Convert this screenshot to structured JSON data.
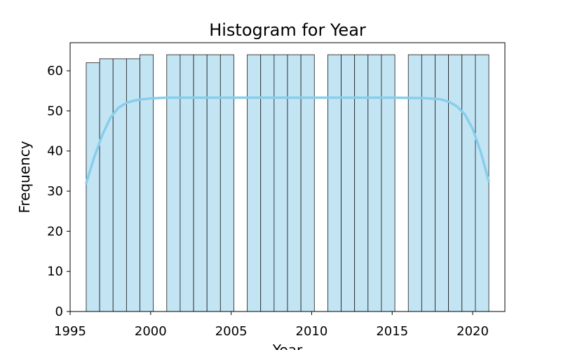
{
  "chart_data": {
    "type": "bar",
    "title": "Histogram for Year",
    "xlabel": "Year",
    "ylabel": "Frequency",
    "xlim": [
      1995,
      2022
    ],
    "ylim": [
      0,
      67
    ],
    "xticks": [
      1995,
      2000,
      2005,
      2010,
      2015,
      2020
    ],
    "yticks": [
      0,
      10,
      20,
      30,
      40,
      50,
      60
    ],
    "grid": false,
    "colors": {
      "bar_fill": "#c3e4f3",
      "bar_edge": "#1a1a1a",
      "kde": "#87ceeb"
    },
    "bins": [
      {
        "start": 1996.0,
        "end": 1996.833,
        "count": 62
      },
      {
        "start": 1996.833,
        "end": 1997.667,
        "count": 63
      },
      {
        "start": 1997.667,
        "end": 1998.5,
        "count": 63
      },
      {
        "start": 1998.5,
        "end": 1999.333,
        "count": 63
      },
      {
        "start": 1999.333,
        "end": 2000.167,
        "count": 64
      },
      {
        "start": 2000.167,
        "end": 2001.0,
        "count": 0
      },
      {
        "start": 2001.0,
        "end": 2001.833,
        "count": 64
      },
      {
        "start": 2001.833,
        "end": 2002.667,
        "count": 64
      },
      {
        "start": 2002.667,
        "end": 2003.5,
        "count": 64
      },
      {
        "start": 2003.5,
        "end": 2004.333,
        "count": 64
      },
      {
        "start": 2004.333,
        "end": 2005.167,
        "count": 64
      },
      {
        "start": 2005.167,
        "end": 2006.0,
        "count": 0
      },
      {
        "start": 2006.0,
        "end": 2006.833,
        "count": 64
      },
      {
        "start": 2006.833,
        "end": 2007.667,
        "count": 64
      },
      {
        "start": 2007.667,
        "end": 2008.5,
        "count": 64
      },
      {
        "start": 2008.5,
        "end": 2009.333,
        "count": 64
      },
      {
        "start": 2009.333,
        "end": 2010.167,
        "count": 64
      },
      {
        "start": 2010.167,
        "end": 2011.0,
        "count": 0
      },
      {
        "start": 2011.0,
        "end": 2011.833,
        "count": 64
      },
      {
        "start": 2011.833,
        "end": 2012.667,
        "count": 64
      },
      {
        "start": 2012.667,
        "end": 2013.5,
        "count": 64
      },
      {
        "start": 2013.5,
        "end": 2014.333,
        "count": 64
      },
      {
        "start": 2014.333,
        "end": 2015.167,
        "count": 64
      },
      {
        "start": 2015.167,
        "end": 2016.0,
        "count": 0
      },
      {
        "start": 2016.0,
        "end": 2016.833,
        "count": 64
      },
      {
        "start": 2016.833,
        "end": 2017.667,
        "count": 64
      },
      {
        "start": 2017.667,
        "end": 2018.5,
        "count": 64
      },
      {
        "start": 2018.5,
        "end": 2019.333,
        "count": 64
      },
      {
        "start": 2019.333,
        "end": 2020.167,
        "count": 64
      },
      {
        "start": 2020.167,
        "end": 2021.0,
        "count": 64
      }
    ],
    "kde": {
      "x": [
        1996,
        1996.5,
        1997,
        1997.5,
        1998,
        1998.5,
        1999,
        1999.5,
        2000,
        2001,
        2002,
        2005,
        2010,
        2015,
        2017,
        2018,
        2018.5,
        2019,
        2019.5,
        2020,
        2020.5,
        2021
      ],
      "y": [
        32,
        38.5,
        44,
        48.3,
        50.8,
        52,
        52.6,
        52.9,
        53.1,
        53.3,
        53.3,
        53.3,
        53.3,
        53.3,
        53.2,
        52.9,
        52.3,
        51.2,
        49.2,
        45.5,
        39.8,
        32.5
      ]
    }
  }
}
